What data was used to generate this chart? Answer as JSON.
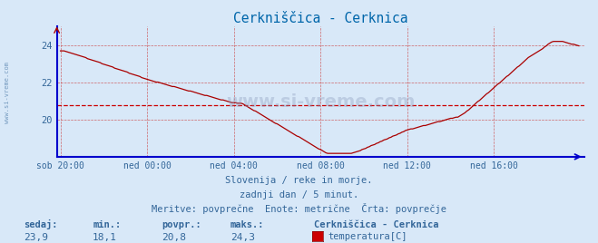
{
  "title": "Cerkniščica - Cerknica",
  "bg_color": "#d8e8f8",
  "line_color": "#aa0000",
  "grid_color": "#cc4444",
  "axis_color": "#0000cc",
  "text_color": "#336699",
  "title_color": "#0066aa",
  "avg_color": "#cc0000",
  "ylim": [
    18.0,
    25.0
  ],
  "yticks": [
    20,
    22,
    24
  ],
  "tick_positions": [
    0,
    48,
    96,
    144,
    192,
    240
  ],
  "x_labels": [
    "sob 20:00",
    "ned 00:00",
    "ned 04:00",
    "ned 08:00",
    "ned 12:00",
    "ned 16:00"
  ],
  "avg_value": 20.8,
  "n_points": 288,
  "footer_line1": "Slovenija / reke in morje.",
  "footer_line2": "zadnji dan / 5 minut.",
  "footer_line3": "Meritve: povprečne  Enote: metrične  Črta: povprečje",
  "legend_title": "Cerkniščica - Cerknica",
  "legend_item": "temperatura[C]",
  "watermark": "www.si-vreme.com",
  "label_sedaj": "sedaj:",
  "label_min": "min.:",
  "label_povpr": "povpr.:",
  "label_maks": "maks.:",
  "val_sedaj": "23,9",
  "val_min": "18,1",
  "val_povpr": "20,8",
  "val_maks": "24,3",
  "sidevreme": "www.si-vreme.com"
}
